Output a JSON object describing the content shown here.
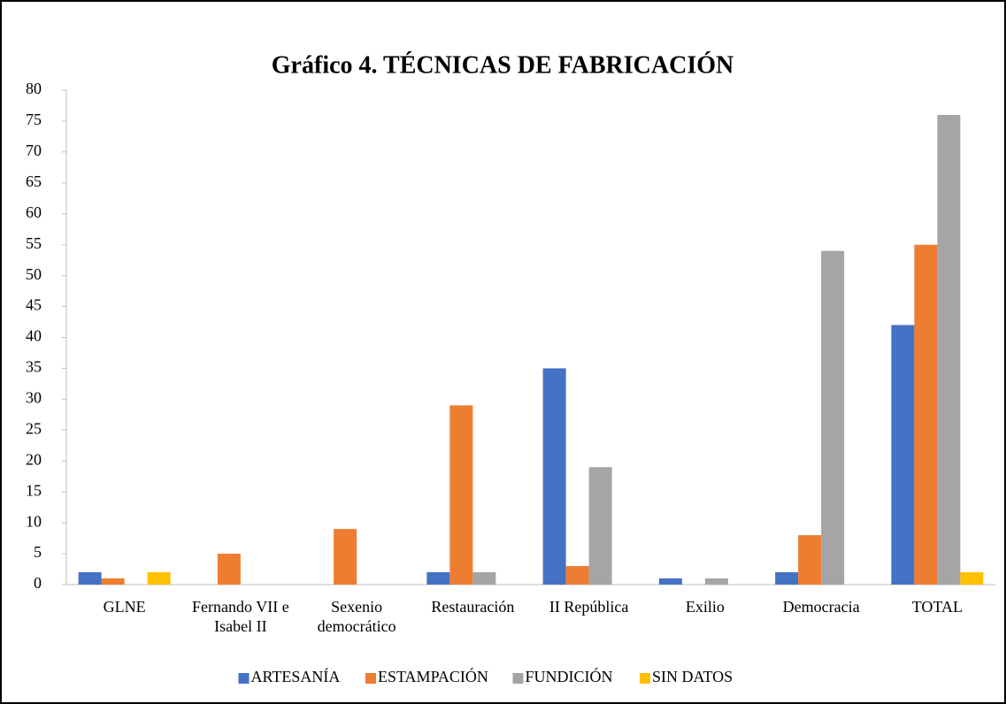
{
  "chart_data": {
    "type": "bar",
    "title": "Gráfico 4. TÉCNICAS DE FABRICACIÓN",
    "categories": [
      "GLNE",
      "Fernando VII e Isabel II",
      "Sexenio democrático",
      "Restauración",
      "II República",
      "Exilio",
      "Democracia",
      "TOTAL"
    ],
    "series": [
      {
        "name": "ARTESANÍA",
        "color": "#4472c4",
        "values": [
          2,
          0,
          0,
          2,
          35,
          1,
          2,
          42
        ]
      },
      {
        "name": "ESTAMPACIÓN",
        "color": "#ed7d31",
        "values": [
          1,
          5,
          9,
          29,
          3,
          0,
          8,
          55
        ]
      },
      {
        "name": "FUNDICIÓN",
        "color": "#a5a5a5",
        "values": [
          0,
          0,
          0,
          2,
          19,
          1,
          54,
          76
        ]
      },
      {
        "name": "SIN DATOS",
        "color": "#ffc000",
        "values": [
          2,
          0,
          0,
          0,
          0,
          0,
          0,
          2
        ]
      }
    ],
    "ylim": [
      0,
      80
    ],
    "yticks": [
      0,
      5,
      10,
      15,
      20,
      25,
      30,
      35,
      40,
      45,
      50,
      55,
      60,
      65,
      70,
      75,
      80
    ],
    "grid": false,
    "legend": "bottom"
  }
}
